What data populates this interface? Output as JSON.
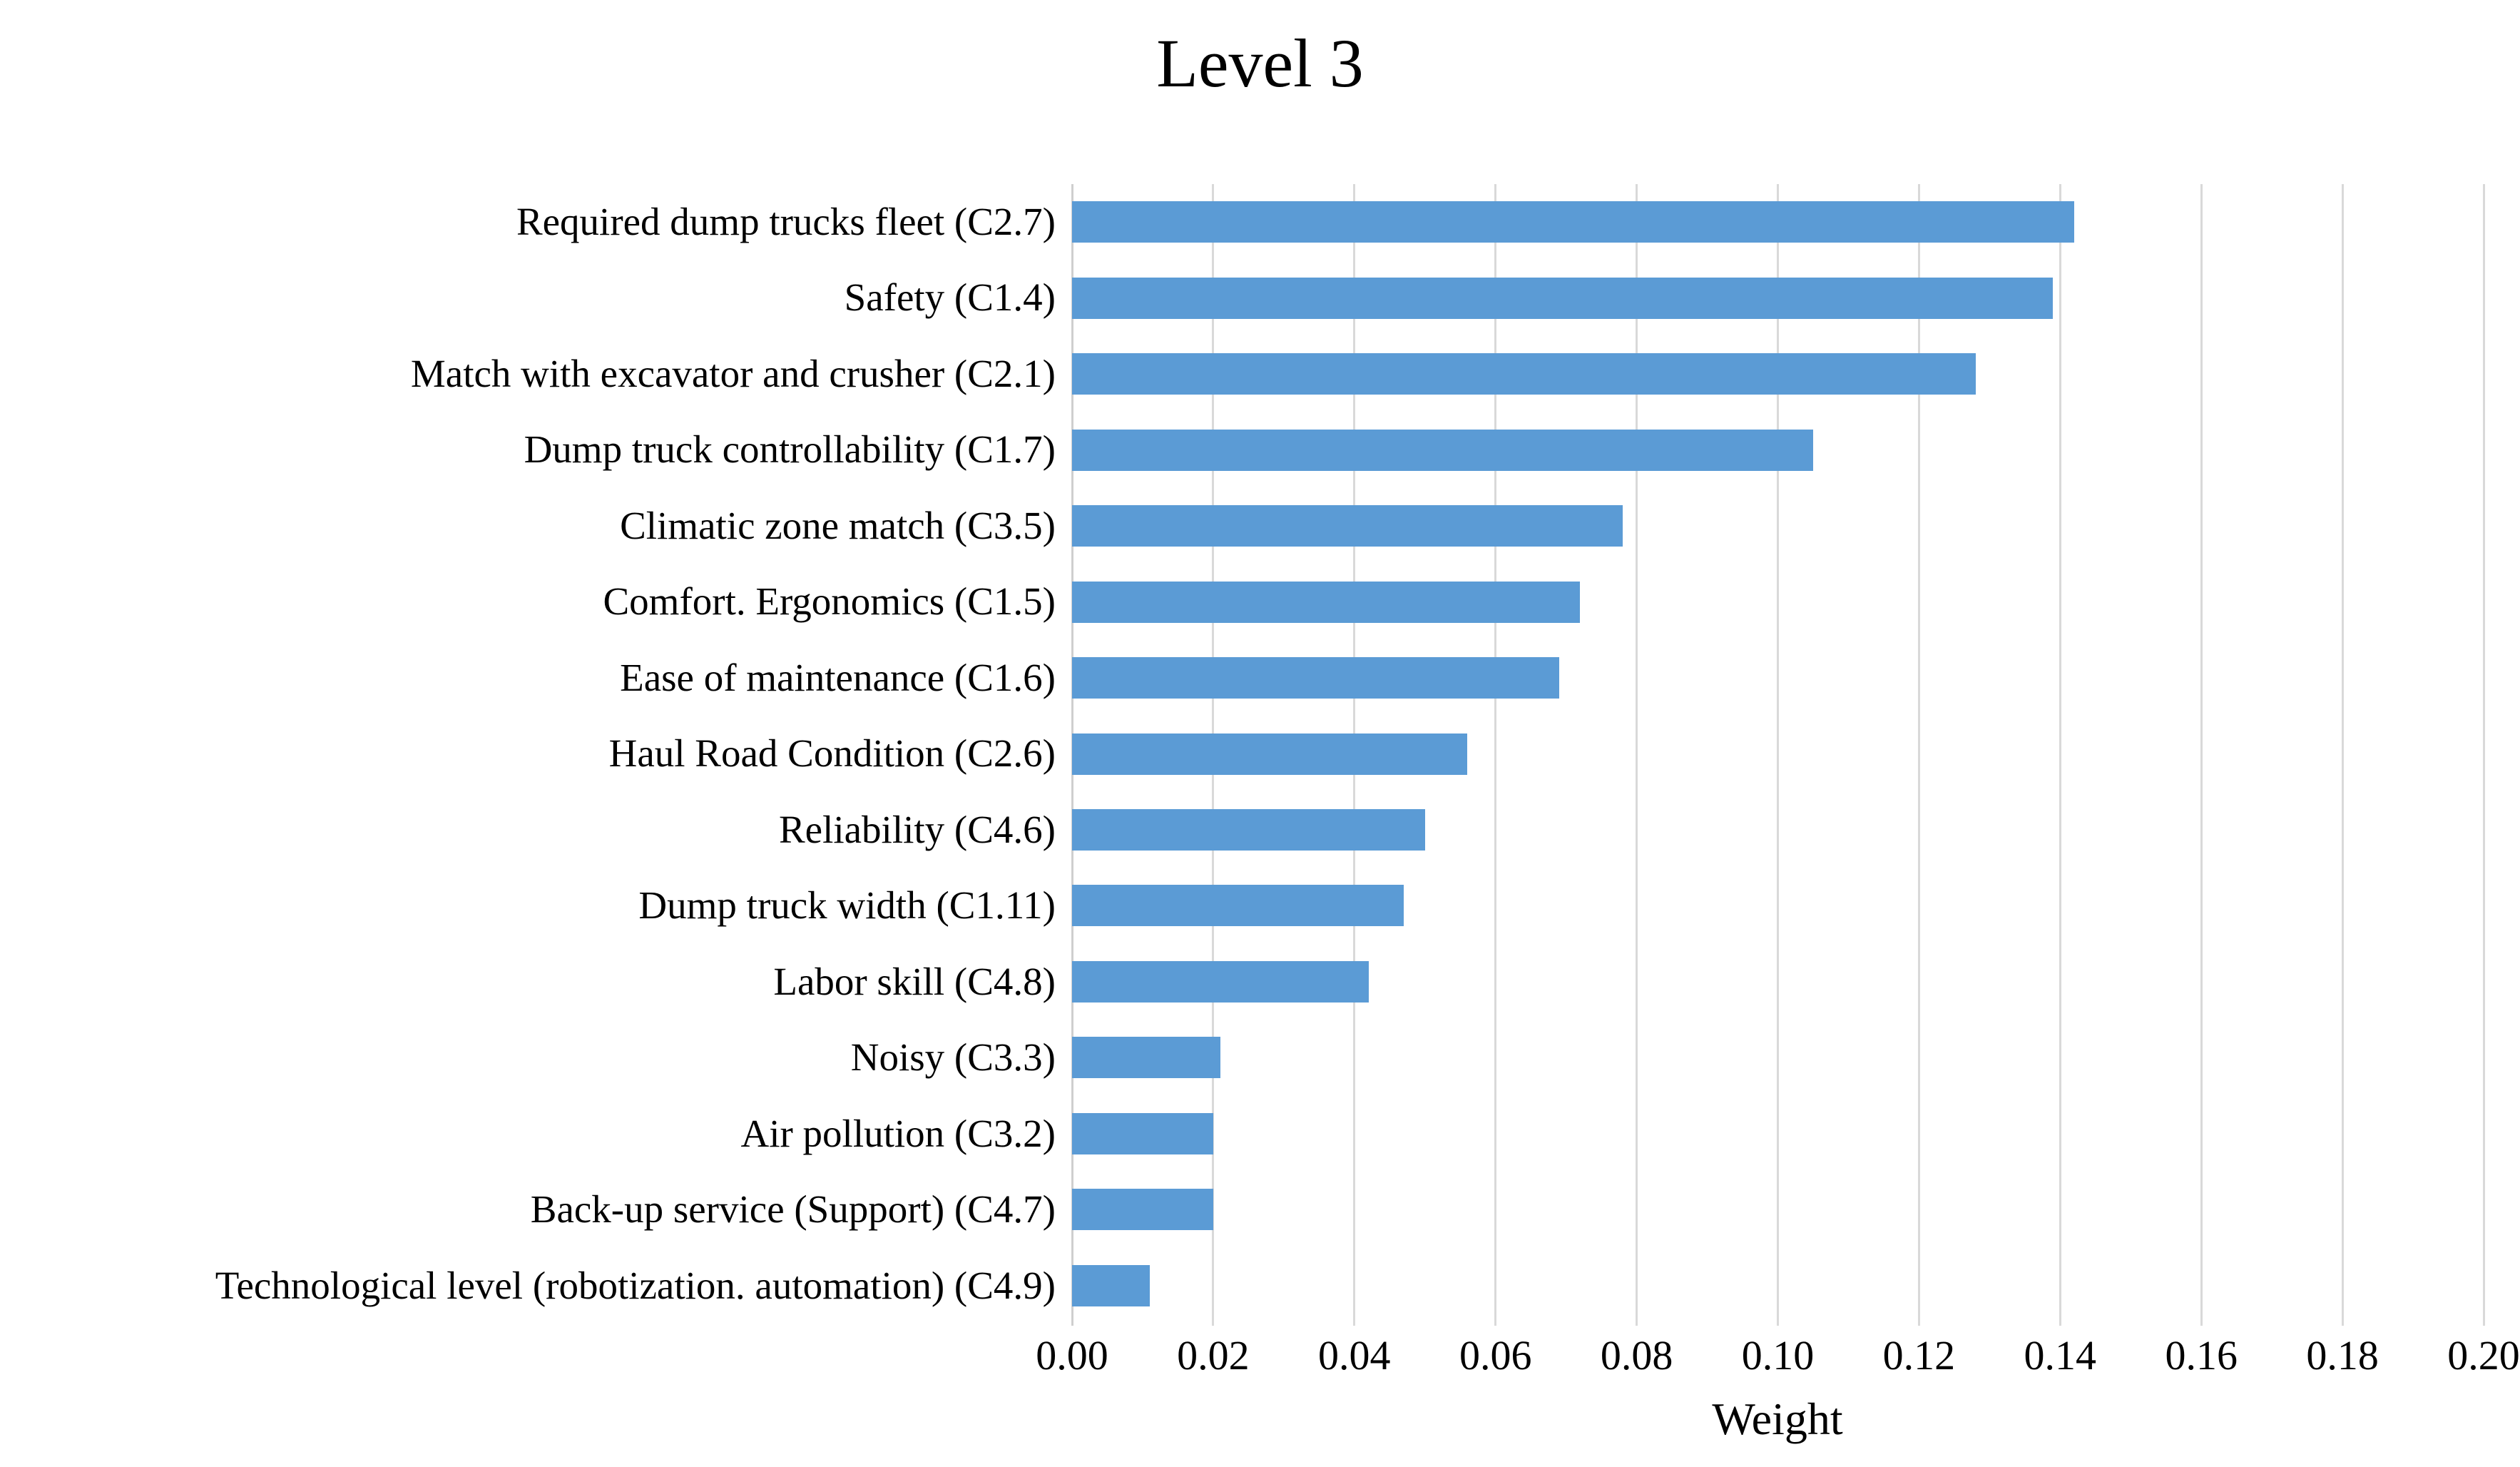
{
  "page": {
    "background_color": "#ffffff",
    "text_color": "#000000"
  },
  "chart_data": {
    "type": "bar",
    "orientation": "horizontal",
    "title": "Level 3",
    "xlabel": "Weight",
    "ylabel": "",
    "categories": [
      "Required dump trucks fleet (C2.7)",
      "Safety (C1.4)",
      "Match with excavator and crusher (C2.1)",
      "Dump truck controllability (C1.7)",
      "Climatic zone match (C3.5)",
      "Comfort. Ergonomics (C1.5)",
      "Ease of maintenance (C1.6)",
      "Haul Road Condition (C2.6)",
      "Reliability (C4.6)",
      "Dump truck width (C1.11)",
      "Labor skill (C4.8)",
      "Noisy (C3.3)",
      "Air pollution (C3.2)",
      "Back-up service (Support) (C4.7)",
      "Technological level (robotization. automation) (C4.9)"
    ],
    "values": [
      0.142,
      0.139,
      0.128,
      0.105,
      0.078,
      0.072,
      0.069,
      0.056,
      0.05,
      0.047,
      0.042,
      0.021,
      0.02,
      0.02,
      0.011
    ],
    "xlim": [
      0.0,
      0.2
    ],
    "x_ticks": [
      "0.00",
      "0.02",
      "0.04",
      "0.06",
      "0.08",
      "0.10",
      "0.12",
      "0.14",
      "0.16",
      "0.18",
      "0.20"
    ],
    "grid": true,
    "legend": false,
    "bar_color": "#5B9BD5",
    "gridline_color": "#D9D9D9",
    "axisline_color": "#CFCFCF"
  }
}
